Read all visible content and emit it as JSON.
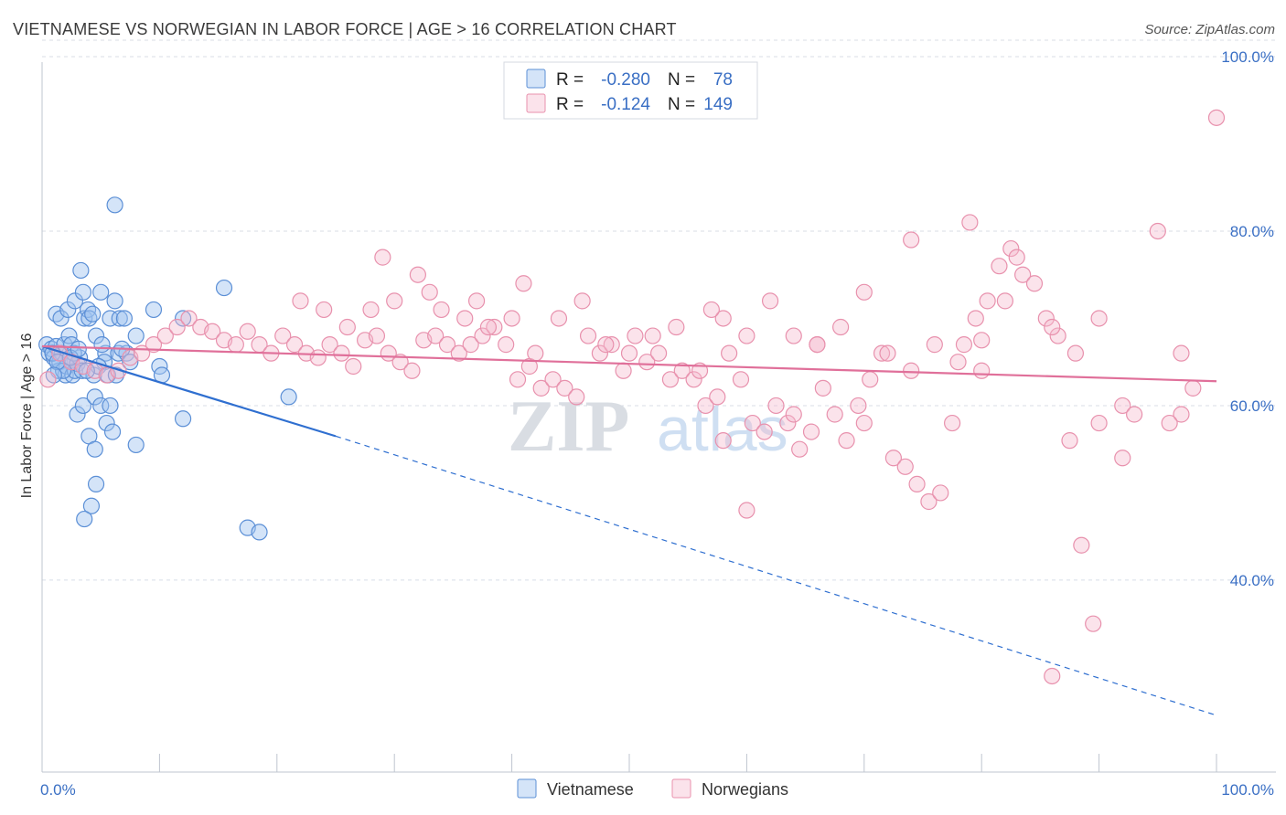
{
  "title": "VIETNAMESE VS NORWEGIAN IN LABOR FORCE | AGE > 16 CORRELATION CHART",
  "source": "Source: ZipAtlas.com",
  "watermark": "ZIPatlas",
  "chart_data": {
    "type": "scatter",
    "title": "VIETNAMESE VS NORWEGIAN IN LABOR FORCE | AGE > 16 CORRELATION CHART",
    "ylabel": "In Labor Force | Age > 16",
    "xlabel": "",
    "xlim": [
      0,
      100
    ],
    "ylim": [
      18,
      100
    ],
    "x_tick_labels": [
      "0.0%",
      "100.0%"
    ],
    "y_ticks": [
      40,
      60,
      80,
      100
    ],
    "y_tick_labels": [
      "40.0%",
      "60.0%",
      "80.0%",
      "100.0%"
    ],
    "grid": true,
    "legend_position": "top-center",
    "stats": [
      {
        "r_label": "R =",
        "r": "-0.280",
        "n_label": "N =",
        "n": "78"
      },
      {
        "r_label": "R =",
        "r": "-0.124",
        "n_label": "N =",
        "n": "149"
      }
    ],
    "series": [
      {
        "name": "Vietnamese",
        "color": "#5b8fd6",
        "fill": "rgba(160,195,240,0.45)",
        "trend_color": "#2f6fd0",
        "trend": {
          "x0": 0,
          "y0": 66.8,
          "x1": 25,
          "y1": 56.5,
          "dash_to_x": 100,
          "dash_to_y": 24.5
        },
        "points": [
          [
            0.4,
            67
          ],
          [
            0.6,
            66
          ],
          [
            0.8,
            66.5
          ],
          [
            1.0,
            65.5
          ],
          [
            1.2,
            66.8
          ],
          [
            1.4,
            64
          ],
          [
            1.5,
            65
          ],
          [
            1.7,
            66
          ],
          [
            1.9,
            67
          ],
          [
            2.0,
            63.5
          ],
          [
            2.1,
            64.5
          ],
          [
            2.3,
            68
          ],
          [
            2.5,
            65
          ],
          [
            2.6,
            63.5
          ],
          [
            2.8,
            64
          ],
          [
            3.0,
            64.8
          ],
          [
            3.2,
            65.5
          ],
          [
            3.4,
            64
          ],
          [
            3.6,
            70
          ],
          [
            1.2,
            70.5
          ],
          [
            1.6,
            70
          ],
          [
            2.2,
            71
          ],
          [
            2.8,
            72
          ],
          [
            3.3,
            75.5
          ],
          [
            3.5,
            73
          ],
          [
            3.9,
            71
          ],
          [
            4.0,
            70
          ],
          [
            4.3,
            70.5
          ],
          [
            4.6,
            68
          ],
          [
            5.0,
            73
          ],
          [
            5.4,
            66
          ],
          [
            5.8,
            70
          ],
          [
            6.2,
            72
          ],
          [
            6.5,
            66
          ],
          [
            6.6,
            70
          ],
          [
            7.0,
            70
          ],
          [
            7.2,
            66
          ],
          [
            8.0,
            68
          ],
          [
            9.5,
            71
          ],
          [
            10.0,
            64.5
          ],
          [
            10.2,
            63.5
          ],
          [
            12.0,
            70
          ],
          [
            15.5,
            73.5
          ],
          [
            5.1,
            67
          ],
          [
            5.3,
            65
          ],
          [
            4.4,
            63.5
          ],
          [
            4.8,
            64.5
          ],
          [
            5.6,
            63.5
          ],
          [
            6.3,
            63.5
          ],
          [
            3.0,
            59
          ],
          [
            3.5,
            60
          ],
          [
            4.5,
            61
          ],
          [
            5.0,
            60
          ],
          [
            5.5,
            58
          ],
          [
            5.8,
            60
          ],
          [
            6.0,
            57
          ],
          [
            4.0,
            56.5
          ],
          [
            4.5,
            55
          ],
          [
            8.0,
            55.5
          ],
          [
            12.0,
            58.5
          ],
          [
            4.6,
            51
          ],
          [
            4.2,
            48.5
          ],
          [
            3.6,
            47
          ],
          [
            6.2,
            83
          ],
          [
            17.5,
            46
          ],
          [
            18.5,
            45.5
          ],
          [
            21,
            61
          ],
          [
            2.5,
            67
          ],
          [
            2.7,
            66
          ],
          [
            1.8,
            64
          ],
          [
            0.9,
            66
          ],
          [
            1.3,
            65
          ],
          [
            2.4,
            65.5
          ],
          [
            3.1,
            66.5
          ],
          [
            3.8,
            64
          ],
          [
            6.8,
            66.5
          ],
          [
            7.5,
            65
          ],
          [
            1.0,
            63.5
          ]
        ]
      },
      {
        "name": "Norwegians",
        "color": "#e891ad",
        "fill": "rgba(245,185,205,0.40)",
        "trend_color": "#e0709a",
        "trend": {
          "x0": 0,
          "y0": 66.8,
          "x1": 100,
          "y1": 62.8
        },
        "points": [
          [
            0.5,
            63
          ],
          [
            1.5,
            66
          ],
          [
            2.5,
            65
          ],
          [
            3.5,
            64.5
          ],
          [
            4.5,
            64
          ],
          [
            5.5,
            63.5
          ],
          [
            6.5,
            64
          ],
          [
            7.5,
            65.5
          ],
          [
            8.5,
            66
          ],
          [
            9.5,
            67
          ],
          [
            10.5,
            68
          ],
          [
            11.5,
            69
          ],
          [
            12.5,
            70
          ],
          [
            13.5,
            69
          ],
          [
            14.5,
            68.5
          ],
          [
            15.5,
            67.5
          ],
          [
            16.5,
            67
          ],
          [
            17.5,
            68.5
          ],
          [
            18.5,
            67
          ],
          [
            19.5,
            66
          ],
          [
            20.5,
            68
          ],
          [
            21.5,
            67
          ],
          [
            22.5,
            66
          ],
          [
            23.5,
            65.5
          ],
          [
            24.5,
            67
          ],
          [
            25.5,
            66
          ],
          [
            26.5,
            64.5
          ],
          [
            27.5,
            67.5
          ],
          [
            28.5,
            68
          ],
          [
            29.5,
            66
          ],
          [
            30.5,
            65
          ],
          [
            31.5,
            64
          ],
          [
            32.5,
            67.5
          ],
          [
            33.5,
            68
          ],
          [
            34.5,
            67
          ],
          [
            35.5,
            66
          ],
          [
            36.5,
            67
          ],
          [
            37.5,
            68
          ],
          [
            38.5,
            69
          ],
          [
            39.5,
            67
          ],
          [
            40.5,
            63
          ],
          [
            41.5,
            64.5
          ],
          [
            42.5,
            62
          ],
          [
            43.5,
            63
          ],
          [
            44.5,
            62
          ],
          [
            45.5,
            61
          ],
          [
            46.5,
            68
          ],
          [
            47.5,
            66
          ],
          [
            48.5,
            67
          ],
          [
            49.5,
            64
          ],
          [
            50.5,
            68
          ],
          [
            51.5,
            65
          ],
          [
            52.5,
            66
          ],
          [
            53.5,
            63
          ],
          [
            54.5,
            64
          ],
          [
            55.5,
            63
          ],
          [
            56.5,
            60
          ],
          [
            57.5,
            61
          ],
          [
            58.5,
            66
          ],
          [
            59.5,
            63
          ],
          [
            60.5,
            58
          ],
          [
            61.5,
            57
          ],
          [
            62.5,
            60
          ],
          [
            63.5,
            58
          ],
          [
            64.5,
            55
          ],
          [
            65.5,
            57
          ],
          [
            66.5,
            62
          ],
          [
            67.5,
            59
          ],
          [
            68.5,
            56
          ],
          [
            69.5,
            60
          ],
          [
            70.5,
            63
          ],
          [
            71.5,
            66
          ],
          [
            72.5,
            54
          ],
          [
            73.5,
            53
          ],
          [
            74.5,
            51
          ],
          [
            75.5,
            49
          ],
          [
            76.5,
            50
          ],
          [
            77.5,
            58
          ],
          [
            78.5,
            67
          ],
          [
            79.5,
            70
          ],
          [
            80.5,
            72
          ],
          [
            81.5,
            76
          ],
          [
            82.5,
            78
          ],
          [
            83.5,
            75
          ],
          [
            84.5,
            74
          ],
          [
            85.5,
            70
          ],
          [
            86.5,
            68
          ],
          [
            87.5,
            56
          ],
          [
            88.5,
            44
          ],
          [
            89.5,
            35
          ],
          [
            22,
            72
          ],
          [
            24,
            71
          ],
          [
            26,
            69
          ],
          [
            28,
            71
          ],
          [
            30,
            72
          ],
          [
            32,
            75
          ],
          [
            34,
            71
          ],
          [
            36,
            70
          ],
          [
            38,
            69
          ],
          [
            40,
            70
          ],
          [
            42,
            66
          ],
          [
            44,
            70
          ],
          [
            46,
            72
          ],
          [
            48,
            67
          ],
          [
            50,
            66
          ],
          [
            52,
            68
          ],
          [
            54,
            69
          ],
          [
            56,
            64
          ],
          [
            58,
            70
          ],
          [
            60,
            68
          ],
          [
            62,
            72
          ],
          [
            64,
            68
          ],
          [
            66,
            67
          ],
          [
            68,
            69
          ],
          [
            70,
            73
          ],
          [
            72,
            66
          ],
          [
            74,
            64
          ],
          [
            76,
            67
          ],
          [
            78,
            65
          ],
          [
            80,
            64
          ],
          [
            29,
            77
          ],
          [
            33,
            73
          ],
          [
            37,
            72
          ],
          [
            41,
            74
          ],
          [
            57,
            71
          ],
          [
            60,
            48
          ],
          [
            58,
            56
          ],
          [
            64,
            59
          ],
          [
            66,
            67
          ],
          [
            70,
            58
          ],
          [
            74,
            79
          ],
          [
            79,
            81
          ],
          [
            80,
            67.5
          ],
          [
            82,
            72
          ],
          [
            86,
            69
          ],
          [
            88,
            66
          ],
          [
            90,
            70
          ],
          [
            92,
            60
          ],
          [
            95,
            80
          ],
          [
            97,
            66
          ],
          [
            100,
            93
          ],
          [
            90,
            58
          ],
          [
            92,
            54
          ],
          [
            93,
            59
          ],
          [
            86,
            29
          ],
          [
            83,
            77
          ],
          [
            97,
            59
          ],
          [
            98,
            62
          ],
          [
            96,
            58
          ]
        ]
      }
    ]
  }
}
